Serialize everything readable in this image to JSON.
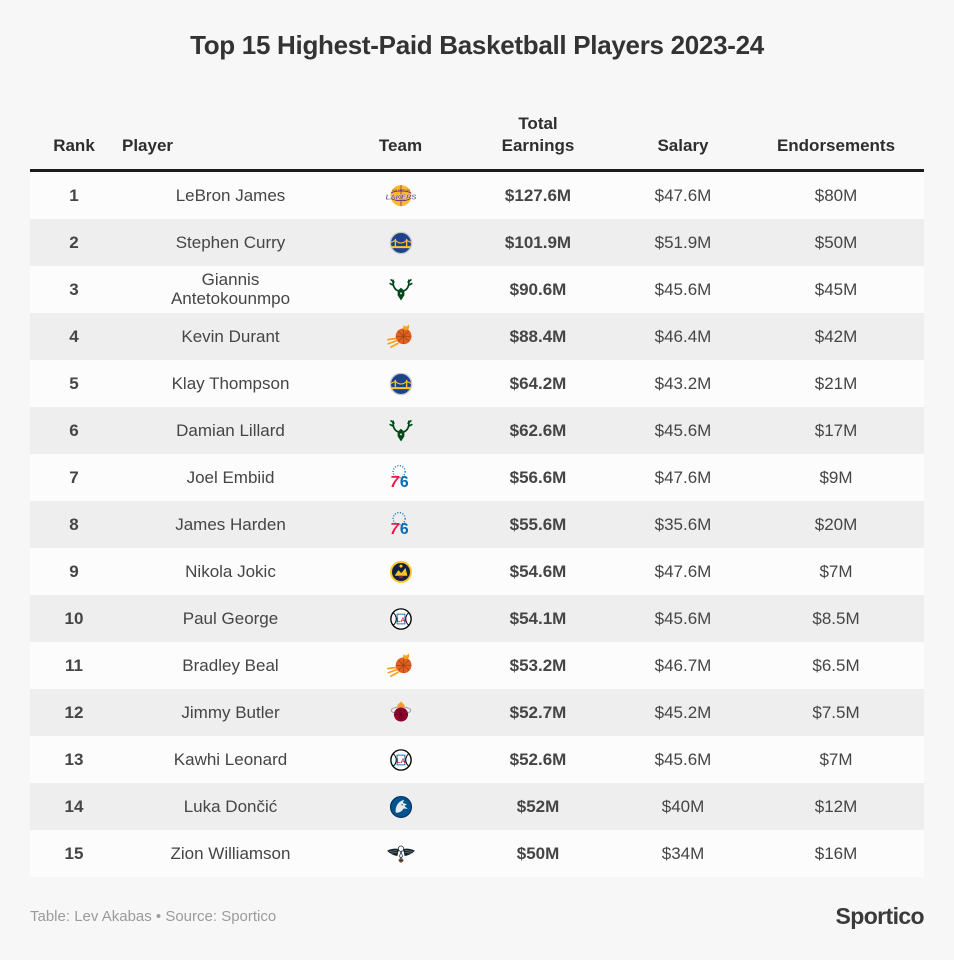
{
  "page": {
    "title": "Top 15 Highest-Paid Basketball Players 2023-24",
    "background_color": "#f7f7f7",
    "row_alt_color": "#eeeeee",
    "header_rule_color": "#1c1c1c"
  },
  "table": {
    "columns": [
      {
        "id": "rank",
        "label": "Rank"
      },
      {
        "id": "player",
        "label": "Player"
      },
      {
        "id": "team",
        "label": "Team"
      },
      {
        "id": "total_earnings",
        "label": "Total\nEarnings"
      },
      {
        "id": "salary",
        "label": "Salary"
      },
      {
        "id": "endorsements",
        "label": "Endorsements"
      }
    ],
    "rows": [
      {
        "rank": "1",
        "player": "LeBron James",
        "team": "Los Angeles Lakers",
        "logo": "lakers-logo",
        "total_earnings": "$127.6M",
        "salary": "$47.6M",
        "endorsements": "$80M"
      },
      {
        "rank": "2",
        "player": "Stephen Curry",
        "team": "Golden State Warriors",
        "logo": "warriors-logo",
        "total_earnings": "$101.9M",
        "salary": "$51.9M",
        "endorsements": "$50M"
      },
      {
        "rank": "3",
        "player": "Giannis Antetokounmpo",
        "team": "Milwaukee Bucks",
        "logo": "bucks-logo",
        "total_earnings": "$90.6M",
        "salary": "$45.6M",
        "endorsements": "$45M"
      },
      {
        "rank": "4",
        "player": "Kevin Durant",
        "team": "Phoenix Suns",
        "logo": "suns-logo",
        "total_earnings": "$88.4M",
        "salary": "$46.4M",
        "endorsements": "$42M"
      },
      {
        "rank": "5",
        "player": "Klay Thompson",
        "team": "Golden State Warriors",
        "logo": "warriors-logo",
        "total_earnings": "$64.2M",
        "salary": "$43.2M",
        "endorsements": "$21M"
      },
      {
        "rank": "6",
        "player": "Damian Lillard",
        "team": "Milwaukee Bucks",
        "logo": "bucks-logo",
        "total_earnings": "$62.6M",
        "salary": "$45.6M",
        "endorsements": "$17M"
      },
      {
        "rank": "7",
        "player": "Joel Embiid",
        "team": "Philadelphia 76ers",
        "logo": "sixers-logo",
        "total_earnings": "$56.6M",
        "salary": "$47.6M",
        "endorsements": "$9M"
      },
      {
        "rank": "8",
        "player": "James Harden",
        "team": "Philadelphia 76ers",
        "logo": "sixers-logo",
        "total_earnings": "$55.6M",
        "salary": "$35.6M",
        "endorsements": "$20M"
      },
      {
        "rank": "9",
        "player": "Nikola Jokic",
        "team": "Denver Nuggets",
        "logo": "nuggets-logo",
        "total_earnings": "$54.6M",
        "salary": "$47.6M",
        "endorsements": "$7M"
      },
      {
        "rank": "10",
        "player": "Paul George",
        "team": "LA Clippers",
        "logo": "clippers-logo",
        "total_earnings": "$54.1M",
        "salary": "$45.6M",
        "endorsements": "$8.5M"
      },
      {
        "rank": "11",
        "player": "Bradley Beal",
        "team": "Phoenix Suns",
        "logo": "suns-logo",
        "total_earnings": "$53.2M",
        "salary": "$46.7M",
        "endorsements": "$6.5M"
      },
      {
        "rank": "12",
        "player": "Jimmy Butler",
        "team": "Miami Heat",
        "logo": "heat-logo",
        "total_earnings": "$52.7M",
        "salary": "$45.2M",
        "endorsements": "$7.5M"
      },
      {
        "rank": "13",
        "player": "Kawhi Leonard",
        "team": "LA Clippers",
        "logo": "clippers-logo",
        "total_earnings": "$52.6M",
        "salary": "$45.6M",
        "endorsements": "$7M"
      },
      {
        "rank": "14",
        "player": "Luka Dončić",
        "team": "Dallas Mavericks",
        "logo": "mavericks-logo",
        "total_earnings": "$52M",
        "salary": "$40M",
        "endorsements": "$12M"
      },
      {
        "rank": "15",
        "player": "Zion Williamson",
        "team": "New Orleans Pelicans",
        "logo": "pelicans-logo",
        "total_earnings": "$50M",
        "salary": "$34M",
        "endorsements": "$16M"
      }
    ]
  },
  "footer": {
    "credit": "Table: Lev Akabas • Source: Sportico",
    "brand": "Sportico"
  },
  "chart_data": {
    "type": "table",
    "title": "Top 15 Highest-Paid Basketball Players 2023-24",
    "columns": [
      "Rank",
      "Player",
      "Team",
      "Total Earnings",
      "Salary",
      "Endorsements"
    ],
    "units": "USD millions",
    "rows": [
      [
        1,
        "LeBron James",
        "Los Angeles Lakers",
        127.6,
        47.6,
        80
      ],
      [
        2,
        "Stephen Curry",
        "Golden State Warriors",
        101.9,
        51.9,
        50
      ],
      [
        3,
        "Giannis Antetokounmpo",
        "Milwaukee Bucks",
        90.6,
        45.6,
        45
      ],
      [
        4,
        "Kevin Durant",
        "Phoenix Suns",
        88.4,
        46.4,
        42
      ],
      [
        5,
        "Klay Thompson",
        "Golden State Warriors",
        64.2,
        43.2,
        21
      ],
      [
        6,
        "Damian Lillard",
        "Milwaukee Bucks",
        62.6,
        45.6,
        17
      ],
      [
        7,
        "Joel Embiid",
        "Philadelphia 76ers",
        56.6,
        47.6,
        9
      ],
      [
        8,
        "James Harden",
        "Philadelphia 76ers",
        55.6,
        35.6,
        20
      ],
      [
        9,
        "Nikola Jokic",
        "Denver Nuggets",
        54.6,
        47.6,
        7
      ],
      [
        10,
        "Paul George",
        "LA Clippers",
        54.1,
        45.6,
        8.5
      ],
      [
        11,
        "Bradley Beal",
        "Phoenix Suns",
        53.2,
        46.7,
        6.5
      ],
      [
        12,
        "Jimmy Butler",
        "Miami Heat",
        52.7,
        45.2,
        7.5
      ],
      [
        13,
        "Kawhi Leonard",
        "LA Clippers",
        52.6,
        45.6,
        7
      ],
      [
        14,
        "Luka Dončić",
        "Dallas Mavericks",
        52,
        40,
        12
      ],
      [
        15,
        "Zion Williamson",
        "New Orleans Pelicans",
        50,
        34,
        16
      ]
    ]
  }
}
